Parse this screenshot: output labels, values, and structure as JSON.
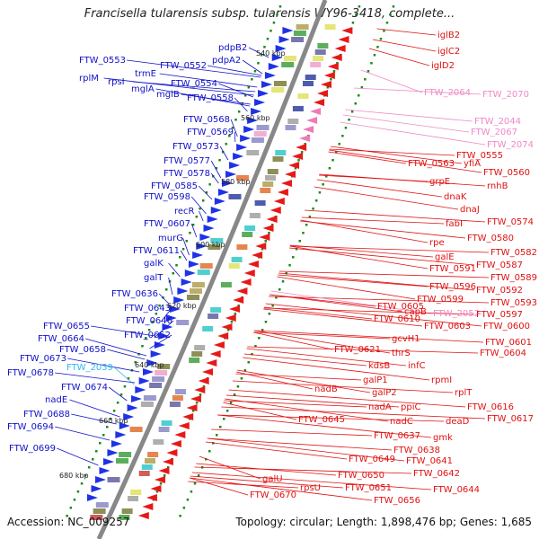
{
  "title": "Francisella tularensis subsp. tularensis WY96-3418, complete...",
  "accession": "Accession: NC_009257",
  "topology": "Topology: circular; Length: 1,898,476 bp; Genes: 1,685",
  "colors": {
    "left_labels": "#1010c8",
    "right_labels": "#e01010",
    "pink_labels": "#f088c8",
    "cyan_label": "#30b8f0",
    "backbone": "#888888",
    "tick_dots": "#1a8a1a"
  },
  "kbp_ticks": [
    "540 kbp",
    "560 kbp",
    "580 kbp",
    "600 kbp",
    "620 kbp",
    "640 kbp",
    "660 kbp",
    "680 kbp"
  ],
  "left_genes": [
    "pdpB2",
    "pdpA2",
    "FTW_0553",
    "FTW_0552",
    "trmE",
    "rplM",
    "rpsI",
    "FTW_0554",
    "mglA",
    "mglB",
    "FTW_0558",
    "FTW_0568",
    "FTW_0569",
    "FTW_0573",
    "FTW_0577",
    "FTW_0578",
    "FTW_0585",
    "FTW_0598",
    "recR",
    "FTW_0607",
    "murG",
    "FTW_0611",
    "galK",
    "galT",
    "FTW_0636",
    "FTW_0643",
    "FTW_0646",
    "FTW_0655",
    "FTW_0652",
    "FTW_0664",
    "FTW_0658",
    "FTW_0673",
    "FTW_2039",
    "FTW_0678",
    "FTW_0674",
    "nadE",
    "FTW_0688",
    "FTW_0694",
    "FTW_0699"
  ],
  "right_genes": [
    "iglB2",
    "iglC2",
    "iglD2",
    "FTW_2064",
    "FTW_2070",
    "FTW_2044",
    "FTW_2067",
    "FTW_2074",
    "FTW_0555",
    "FTW_0563",
    "yfiA",
    "FTW_0560",
    "grpE",
    "rnhB",
    "dnaK",
    "dnaJ",
    "fabI",
    "FTW_0574",
    "FTW_0580",
    "rpe",
    "FTW_0582",
    "galE",
    "FTW_0587",
    "FTW_0591",
    "FTW_0589",
    "FTW_0596",
    "FTW_0592",
    "FTW_0599",
    "FTW_0593",
    "FTW_0605",
    "capB",
    "FTW_2052",
    "FTW_0597",
    "FTW_0610",
    "FTW_0603",
    "FTW_0600",
    "gcvH1",
    "FTW_0601",
    "FTW_0621",
    "thrS",
    "FTW_0604",
    "kdsB",
    "infC",
    "rpmI",
    "galP1",
    "rplT",
    "nadB",
    "galP2",
    "nadA",
    "ppiC",
    "FTW_0616",
    "nadC",
    "deaD",
    "FTW_0617",
    "FTW_0645",
    "gmk",
    "FTW_0637",
    "FTW_0638",
    "FTW_0649",
    "FTW_0641",
    "FTW_0642",
    "FTW_0650",
    "FTW_0644",
    "galU",
    "rpsU",
    "FTW_0651",
    "FTW_0670",
    "FTW_0656"
  ]
}
